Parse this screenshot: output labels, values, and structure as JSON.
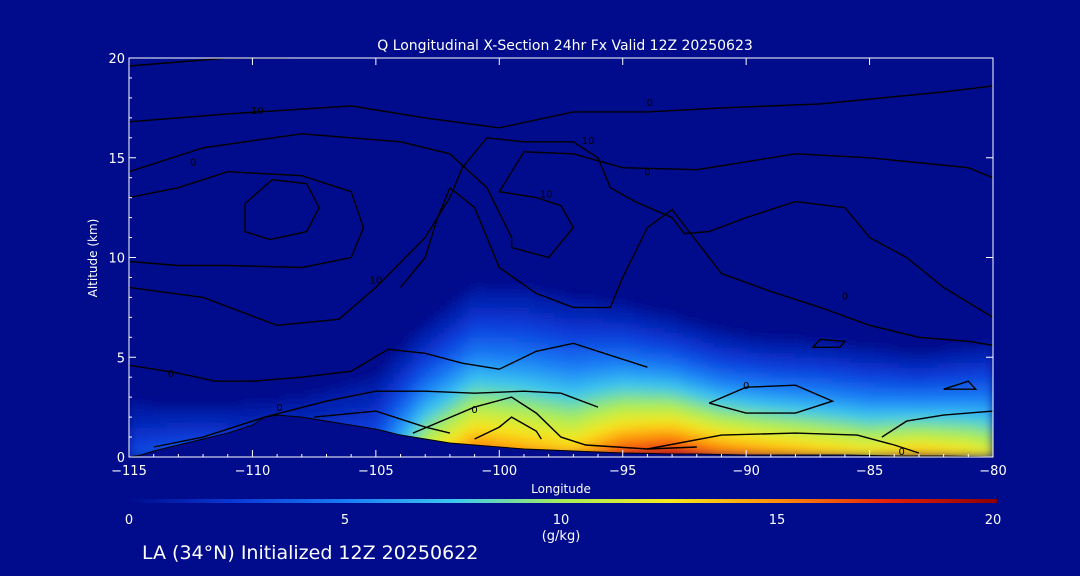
{
  "chart_data": {
    "type": "heatmap",
    "title": "Q Longitudinal X-Section 24hr  Fx Valid 12Z 20250623",
    "xlabel": "Longitude",
    "ylabel": "Altitude (km)",
    "xlim": [
      -115,
      -80
    ],
    "ylim": [
      0,
      20
    ],
    "x_ticks": [
      -115,
      -110,
      -105,
      -100,
      -95,
      -90,
      -85,
      -80
    ],
    "x_tick_labels": [
      "−115",
      "−110",
      "−105",
      "−100",
      "−95",
      "−90",
      "−85",
      "−80"
    ],
    "y_ticks": [
      0,
      5,
      10,
      15,
      20
    ],
    "y_tick_labels": [
      "0",
      "5",
      "10",
      "15",
      "20"
    ],
    "colorbar": {
      "label": "(g/kg)",
      "range": [
        0,
        20
      ],
      "ticks": [
        0,
        5,
        10,
        15,
        20
      ],
      "tick_labels": [
        "0",
        "5",
        "10",
        "15",
        "20"
      ],
      "colormap": [
        "#000c8c",
        "#0a3ad8",
        "#1a7cf6",
        "#3cc8f0",
        "#a8ee5a",
        "#f8e81c",
        "#ff8c0a",
        "#e4200a",
        "#8c0000"
      ]
    },
    "shading_estimate": {
      "description_units": "specific humidity g/kg by longitude",
      "longitude": [
        -115,
        -112,
        -110,
        -108,
        -105,
        -103,
        -101,
        -99,
        -97,
        -95,
        -93,
        -91,
        -89,
        -87,
        -85,
        -83,
        -81,
        -80
      ],
      "surface_value": [
        2,
        3,
        2,
        2,
        3,
        11,
        15,
        14,
        13,
        16,
        17,
        15,
        14,
        13,
        12,
        13,
        12,
        11
      ],
      "moist_top_km": [
        3.5,
        3.2,
        3.5,
        4.0,
        5.2,
        7.5,
        9.5,
        9.5,
        9.0,
        8.5,
        7.8,
        7.0,
        6.6,
        6.5,
        6.2,
        5.8,
        6.2,
        6.5
      ]
    },
    "terrain_km": {
      "longitude": [
        -115,
        -114.5,
        -114,
        -113,
        -112,
        -111,
        -110,
        -109.5,
        -109,
        -108,
        -107,
        -106,
        -105,
        -104,
        -103,
        -102,
        -101,
        -100,
        -99,
        -98,
        -97,
        -96,
        -95,
        -94,
        -93,
        -92,
        -90,
        -88,
        -86,
        -84,
        -82,
        -80
      ],
      "height": [
        0,
        0.1,
        0.3,
        0.6,
        0.9,
        1.2,
        1.6,
        2.0,
        2.1,
        2.0,
        1.8,
        1.6,
        1.4,
        1.1,
        0.9,
        0.7,
        0.6,
        0.5,
        0.4,
        0.35,
        0.3,
        0.25,
        0.2,
        0.18,
        0.15,
        0.15,
        0.1,
        0.1,
        0.1,
        0.05,
        0.05,
        0
      ]
    },
    "contour_labels": [
      "0",
      "10",
      "0",
      "10",
      "0",
      "10",
      "0",
      "10",
      "0",
      "0",
      "0",
      "0",
      "0"
    ]
  },
  "footer": "LA (34°N) Initialized 12Z 20250622"
}
